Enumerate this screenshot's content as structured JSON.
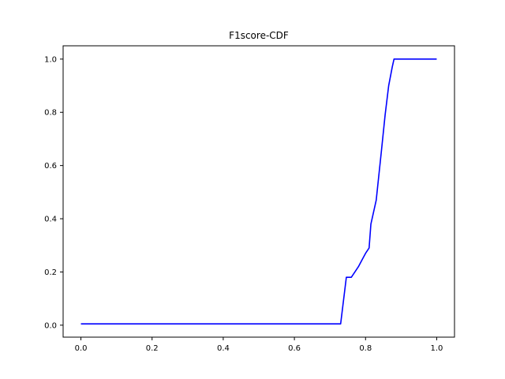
{
  "chart_data": {
    "type": "line",
    "title": "F1score-CDF",
    "xlabel": "",
    "ylabel": "",
    "xlim": [
      -0.05,
      1.05
    ],
    "ylim": [
      -0.045,
      1.05
    ],
    "grid": false,
    "x_ticks": [
      "0.0",
      "0.2",
      "0.4",
      "0.6",
      "0.8",
      "1.0"
    ],
    "y_ticks": [
      "0.0",
      "0.2",
      "0.4",
      "0.6",
      "0.8",
      "1.0"
    ],
    "series": [
      {
        "color": "#0000ff",
        "x": [
          0.0,
          0.73,
          0.746,
          0.76,
          0.77,
          0.78,
          0.79,
          0.8,
          0.81,
          0.815,
          0.83,
          0.845,
          0.855,
          0.865,
          0.875,
          0.88,
          1.0
        ],
        "y": [
          0.005,
          0.005,
          0.18,
          0.18,
          0.2,
          0.22,
          0.245,
          0.27,
          0.29,
          0.38,
          0.47,
          0.66,
          0.79,
          0.9,
          0.97,
          1.0,
          1.0
        ]
      }
    ]
  }
}
